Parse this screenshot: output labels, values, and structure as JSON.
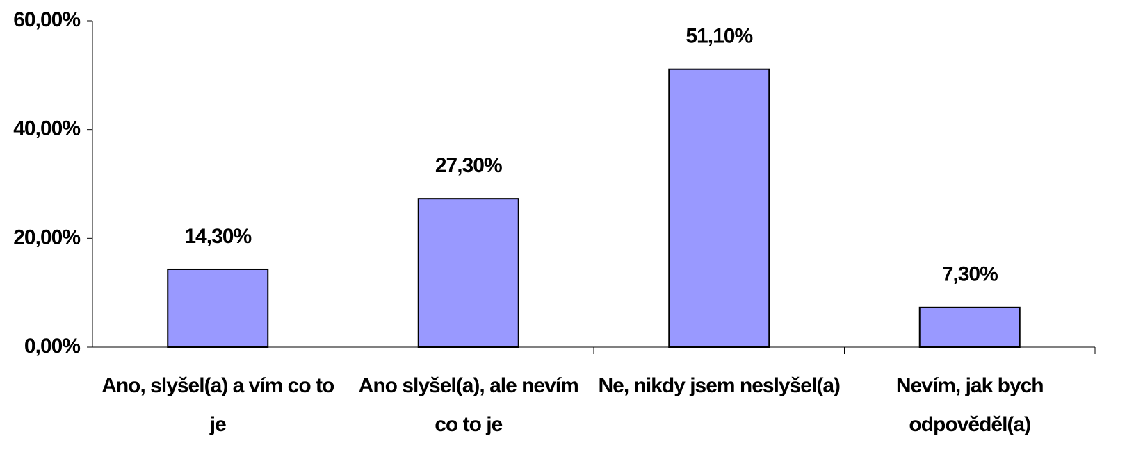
{
  "chart_data": {
    "type": "bar",
    "categories": [
      "Ano, slyšel(a) a vím co to je",
      "Ano slyšel(a), ale nevím co to je",
      "Ne, nikdy jsem neslyšel(a)",
      "Nevím, jak bych odpověděl(a)"
    ],
    "values": [
      14.3,
      27.3,
      51.1,
      7.3
    ],
    "value_labels": [
      "14,30%",
      "27,30%",
      "51,10%",
      "7,30%"
    ],
    "color": "#9999ff",
    "ylim": [
      0,
      60
    ],
    "yticks": [
      {
        "value": 0,
        "label": "0,00%"
      },
      {
        "value": 20,
        "label": "20,00%"
      },
      {
        "value": 40,
        "label": "40,00%"
      },
      {
        "value": 60,
        "label": "60,00%"
      }
    ],
    "grid": false
  }
}
